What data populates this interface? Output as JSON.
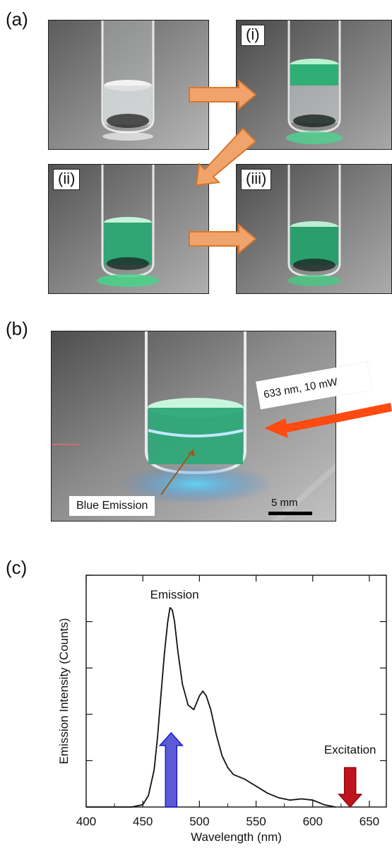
{
  "figure": {
    "panel_labels": {
      "a": "(a)",
      "b": "(b)",
      "c": "(c)"
    },
    "panel_a": {
      "sub_labels": [
        "(i)",
        "(ii)",
        "(iii)"
      ],
      "colors": {
        "arrow_fill": "#f0a46c",
        "arrow_stroke": "#d9762e",
        "liquid_green": "#2fae76"
      }
    },
    "panel_b": {
      "laser_label": "633 nm, 10 mW",
      "emission_callout": "Blue Emission",
      "scale_bar_label": "5 mm",
      "colors": {
        "laser_arrow": "#ff4a12",
        "callout_line": "#9a5a1c"
      }
    }
  },
  "chart_data": {
    "type": "line",
    "title": "",
    "xlabel": "Wavelength (nm)",
    "ylabel": "Emission Intensity (Counts)",
    "xlim": [
      400,
      665
    ],
    "ylim": [
      0,
      1.0
    ],
    "x_ticks": [
      400,
      450,
      500,
      550,
      600,
      650
    ],
    "y_ticks_unlabeled": true,
    "grid": false,
    "annotations": [
      {
        "text": "Emission",
        "x": 478,
        "y": 0.9
      },
      {
        "text": "Excitation",
        "x": 633,
        "y": 0.23
      }
    ],
    "arrows": [
      {
        "name": "blue-arrow",
        "x": 475,
        "y_from": 0.0,
        "y_to": 0.32,
        "color": "#5b5bd6"
      },
      {
        "name": "red-arrow",
        "x": 633,
        "y_from": 0.17,
        "y_to": 0.0,
        "color": "#c0141c"
      }
    ],
    "series": [
      {
        "color": "#111111",
        "x": [
          400,
          440,
          450,
          455,
          460,
          463,
          466,
          469,
          472,
          474,
          476,
          478,
          481,
          485,
          490,
          495,
          500,
          503,
          506,
          510,
          515,
          520,
          525,
          530,
          540,
          550,
          560,
          570,
          580,
          590,
          600,
          610,
          620
        ],
        "y": [
          0.0,
          0.0,
          0.01,
          0.05,
          0.16,
          0.3,
          0.48,
          0.66,
          0.8,
          0.86,
          0.85,
          0.8,
          0.67,
          0.53,
          0.44,
          0.42,
          0.48,
          0.5,
          0.48,
          0.42,
          0.31,
          0.22,
          0.17,
          0.14,
          0.12,
          0.09,
          0.06,
          0.04,
          0.03,
          0.035,
          0.03,
          0.01,
          0.0
        ]
      }
    ]
  }
}
